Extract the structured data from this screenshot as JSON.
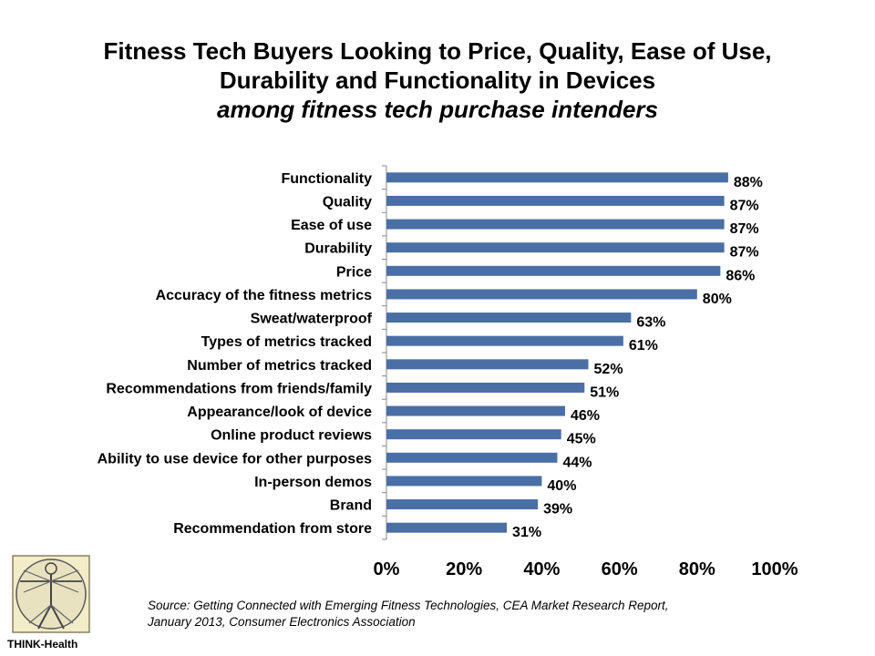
{
  "header": {
    "title_line1": "Fitness Tech Buyers Looking to Price, Quality, Ease of Use,",
    "title_line2": "Durability and Functionality in Devices",
    "subtitle": "among fitness tech purchase intenders"
  },
  "chart_data": {
    "type": "bar",
    "orientation": "horizontal",
    "title": "Fitness Tech Buyers Looking to Price, Quality, Ease of Use, Durability and Functionality in Devices",
    "subtitle": "among fitness tech purchase intenders",
    "categories": [
      "Functionality",
      "Quality",
      "Ease of use",
      "Durability",
      "Price",
      "Accuracy of the fitness metrics",
      "Sweat/waterproof",
      "Types of metrics tracked",
      "Number of metrics tracked",
      "Recommendations from friends/family",
      "Appearance/look of device",
      "Online product reviews",
      "Ability to use device for other purposes",
      "In-person demos",
      "Brand",
      "Recommendation from store"
    ],
    "values": [
      88,
      87,
      87,
      87,
      86,
      80,
      63,
      61,
      52,
      51,
      46,
      45,
      44,
      40,
      39,
      31
    ],
    "value_labels": [
      "88%",
      "87%",
      "87%",
      "87%",
      "86%",
      "80%",
      "63%",
      "61%",
      "52%",
      "51%",
      "46%",
      "45%",
      "44%",
      "40%",
      "39%",
      "31%"
    ],
    "xlim": [
      0,
      100
    ],
    "x_ticks": [
      0,
      20,
      40,
      60,
      80,
      100
    ],
    "x_tick_labels": [
      "0%",
      "20%",
      "40%",
      "60%",
      "80%",
      "100%"
    ],
    "xlabel": "",
    "ylabel": "",
    "grid": false,
    "bar_color": "#4a6fa5"
  },
  "footer": {
    "source_line1": "Source: Getting Connected with  Emerging Fitness Technologies, CEA Market Research Report,",
    "source_line2": "January 2013, Consumer Electronics Association",
    "logo_caption": "THINK-Health"
  }
}
